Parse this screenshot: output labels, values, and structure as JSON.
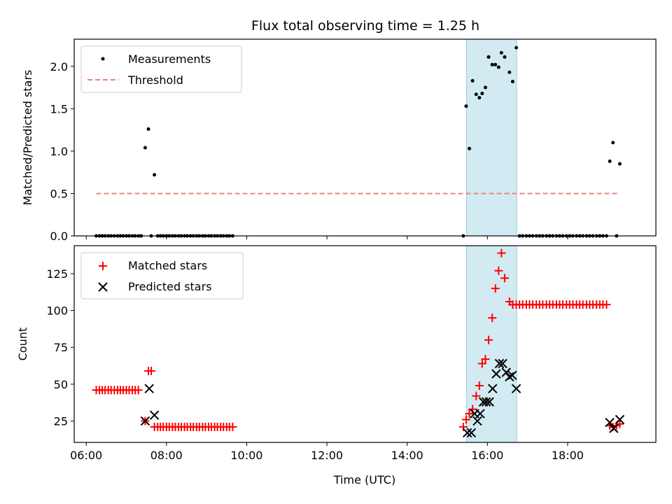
{
  "chart_data": {
    "title": "Flux total observing time = 1.25 h",
    "xlabel": "Time (UTC)",
    "x_ticks": [
      "06:00",
      "08:00",
      "10:00",
      "12:00",
      "14:00",
      "16:00",
      "18:00"
    ],
    "x_tick_hours": [
      6,
      8,
      10,
      12,
      14,
      16,
      18
    ],
    "xlim": [
      5.7,
      20.2
    ],
    "shaded_span": {
      "start": "15:29",
      "end": "16:44",
      "start_hour": 15.48,
      "end_hour": 16.73,
      "color": "#add8e6"
    },
    "panels": [
      {
        "type": "scatter",
        "ylabel": "Matched/Predicted stars",
        "ylim": [
          0,
          2.32
        ],
        "y_ticks": [
          0.0,
          0.5,
          1.0,
          1.5,
          2.0
        ],
        "y_tick_labels": [
          "0.0",
          "0.5",
          "1.0",
          "1.5",
          "2.0"
        ],
        "legend_position": "upper-left",
        "series": [
          {
            "name": "Measurements",
            "marker": "dot",
            "color": "#000000",
            "x": [
              6.25,
              6.33,
              6.4,
              6.47,
              6.55,
              6.62,
              6.7,
              6.78,
              6.85,
              6.92,
              7.0,
              7.07,
              7.15,
              7.22,
              7.3,
              7.37,
              7.47,
              7.55,
              7.62,
              7.7,
              7.78,
              7.85,
              7.92,
              8.0,
              8.07,
              8.15,
              8.22,
              8.3,
              8.37,
              8.45,
              8.52,
              8.6,
              8.67,
              8.75,
              8.82,
              8.9,
              8.97,
              9.05,
              9.12,
              9.2,
              9.27,
              9.35,
              9.42,
              9.5,
              9.57,
              9.65,
              15.4,
              15.47,
              15.55,
              15.63,
              15.72,
              15.8,
              15.87,
              15.95,
              16.03,
              16.12,
              16.2,
              16.28,
              16.35,
              16.43,
              16.55,
              16.63,
              16.72,
              16.8,
              16.88,
              16.97,
              17.05,
              17.13,
              17.22,
              17.3,
              17.38,
              17.47,
              17.55,
              17.63,
              17.72,
              17.8,
              17.88,
              17.97,
              18.05,
              18.13,
              18.22,
              18.3,
              18.38,
              18.47,
              18.55,
              18.63,
              18.72,
              18.8,
              18.88,
              18.97,
              19.05,
              19.13,
              19.22,
              19.3
            ],
            "y": [
              0,
              0,
              0,
              0,
              0,
              0,
              0,
              0,
              0,
              0,
              0,
              0,
              0,
              0,
              0,
              0,
              1.04,
              1.26,
              0,
              0.72,
              0,
              0,
              0,
              0,
              0,
              0,
              0,
              0,
              0,
              0,
              0,
              0,
              0,
              0,
              0,
              0,
              0,
              0,
              0,
              0,
              0,
              0,
              0,
              0,
              0,
              0,
              0,
              1.53,
              1.03,
              1.83,
              1.67,
              1.63,
              1.68,
              1.75,
              2.11,
              2.02,
              2.02,
              1.99,
              2.16,
              2.11,
              1.93,
              1.82,
              2.22,
              0,
              0,
              0,
              0,
              0,
              0,
              0,
              0,
              0,
              0,
              0,
              0,
              0,
              0,
              0,
              0,
              0,
              0,
              0,
              0,
              0,
              0,
              0,
              0,
              0,
              0,
              0,
              0.88,
              1.1,
              0,
              0.85
            ]
          },
          {
            "name": "Threshold",
            "marker": "dashed-line",
            "color": "#f08080",
            "x": [
              6.25,
              19.3
            ],
            "y": [
              0.5,
              0.5
            ]
          }
        ]
      },
      {
        "type": "scatter",
        "ylabel": "Count",
        "ylim": [
          10.5,
          144
        ],
        "y_ticks": [
          25,
          50,
          75,
          100,
          125
        ],
        "y_tick_labels": [
          "25",
          "50",
          "75",
          "100",
          "125"
        ],
        "legend_position": "upper-left",
        "series": [
          {
            "name": "Matched stars",
            "marker": "plus",
            "color": "#ff0000",
            "x": [
              6.25,
              6.33,
              6.4,
              6.47,
              6.55,
              6.62,
              6.7,
              6.78,
              6.85,
              6.92,
              7.0,
              7.07,
              7.15,
              7.22,
              7.3,
              7.47,
              7.55,
              7.62,
              7.7,
              7.78,
              7.85,
              7.92,
              8.0,
              8.07,
              8.15,
              8.22,
              8.3,
              8.37,
              8.45,
              8.52,
              8.6,
              8.67,
              8.75,
              8.82,
              8.9,
              8.97,
              9.05,
              9.12,
              9.2,
              9.27,
              9.35,
              9.42,
              9.5,
              9.57,
              9.65,
              15.4,
              15.47,
              15.55,
              15.63,
              15.72,
              15.8,
              15.87,
              15.95,
              16.03,
              16.12,
              16.2,
              16.28,
              16.35,
              16.43,
              16.55,
              16.63,
              16.72,
              16.8,
              16.88,
              16.97,
              17.05,
              17.13,
              17.22,
              17.3,
              17.38,
              17.47,
              17.55,
              17.63,
              17.72,
              17.8,
              17.88,
              17.97,
              18.05,
              18.13,
              18.22,
              18.3,
              18.38,
              18.47,
              18.55,
              18.63,
              18.72,
              18.8,
              18.88,
              18.97,
              19.05,
              19.13,
              19.22,
              19.3
            ],
            "y": [
              46,
              46,
              46,
              46,
              46,
              46,
              46,
              46,
              46,
              46,
              46,
              46,
              46,
              46,
              46,
              25,
              59,
              59,
              21,
              21,
              21,
              21,
              21,
              21,
              21,
              21,
              21,
              21,
              21,
              21,
              21,
              21,
              21,
              21,
              21,
              21,
              21,
              21,
              21,
              21,
              21,
              21,
              21,
              21,
              21,
              21,
              26,
              30,
              33,
              42,
              49,
              64,
              67,
              80,
              95,
              115,
              127,
              139,
              122,
              106,
              104,
              104,
              104,
              104,
              104,
              104,
              104,
              104,
              104,
              104,
              104,
              104,
              104,
              104,
              104,
              104,
              104,
              104,
              104,
              104,
              104,
              104,
              104,
              104,
              104,
              104,
              104,
              104,
              104,
              22,
              21,
              22,
              23
            ]
          },
          {
            "name": "Predicted stars",
            "marker": "x",
            "color": "#000000",
            "x": [
              7.47,
              7.57,
              7.7,
              15.5,
              15.6,
              15.68,
              15.75,
              15.82,
              15.9,
              15.97,
              16.05,
              16.13,
              16.22,
              16.3,
              16.38,
              16.47,
              16.55,
              16.62,
              16.72,
              19.05,
              19.15,
              19.3
            ],
            "y": [
              25,
              47,
              29,
              17,
              17,
              30,
              25,
              30,
              38,
              38,
              38,
              47,
              57,
              64,
              64,
              58,
              55,
              56,
              47,
              24,
              20,
              26
            ]
          }
        ]
      }
    ]
  }
}
